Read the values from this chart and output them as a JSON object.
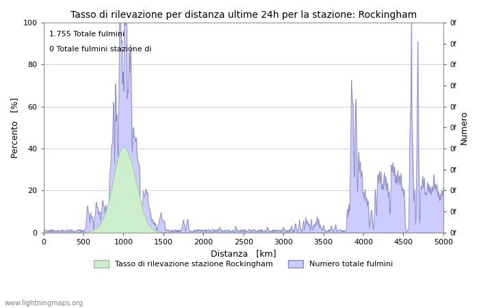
{
  "title": "Tasso di rilevazione per distanza ultime 24h per la stazione: Rockingham",
  "xlabel": "Distanza   [km]",
  "ylabel_left": "Percento   [%]",
  "ylabel_right": "Numero",
  "annotation_line1": "1.755 Totale fulmini",
  "annotation_line2": "0 Totale fulmini stazione di",
  "watermark": "www.lightningmaps.org",
  "legend_label1": "Tasso di rilevazione stazione Rockingham",
  "legend_label2": "Numero totale fulmini",
  "xlim": [
    0,
    5000
  ],
  "ylim": [
    0,
    100
  ],
  "xticks": [
    0,
    500,
    1000,
    1500,
    2000,
    2500,
    3000,
    3500,
    4000,
    4500,
    5000
  ],
  "yticks_left": [
    0,
    20,
    40,
    60,
    80,
    100
  ],
  "yticks_right_labels": [
    "0f",
    "0f",
    "0f",
    "0f",
    "0f",
    "0f",
    "0f",
    "0f",
    "0f",
    "0f",
    "0f"
  ],
  "grid_color": "#bbbbbb",
  "fill_blue_color": "#ccccff",
  "fill_blue_edge": "#8888bb",
  "fill_green_color": "#cceecc",
  "fill_green_edge": "#99bb99",
  "bg_color": "#ffffff"
}
